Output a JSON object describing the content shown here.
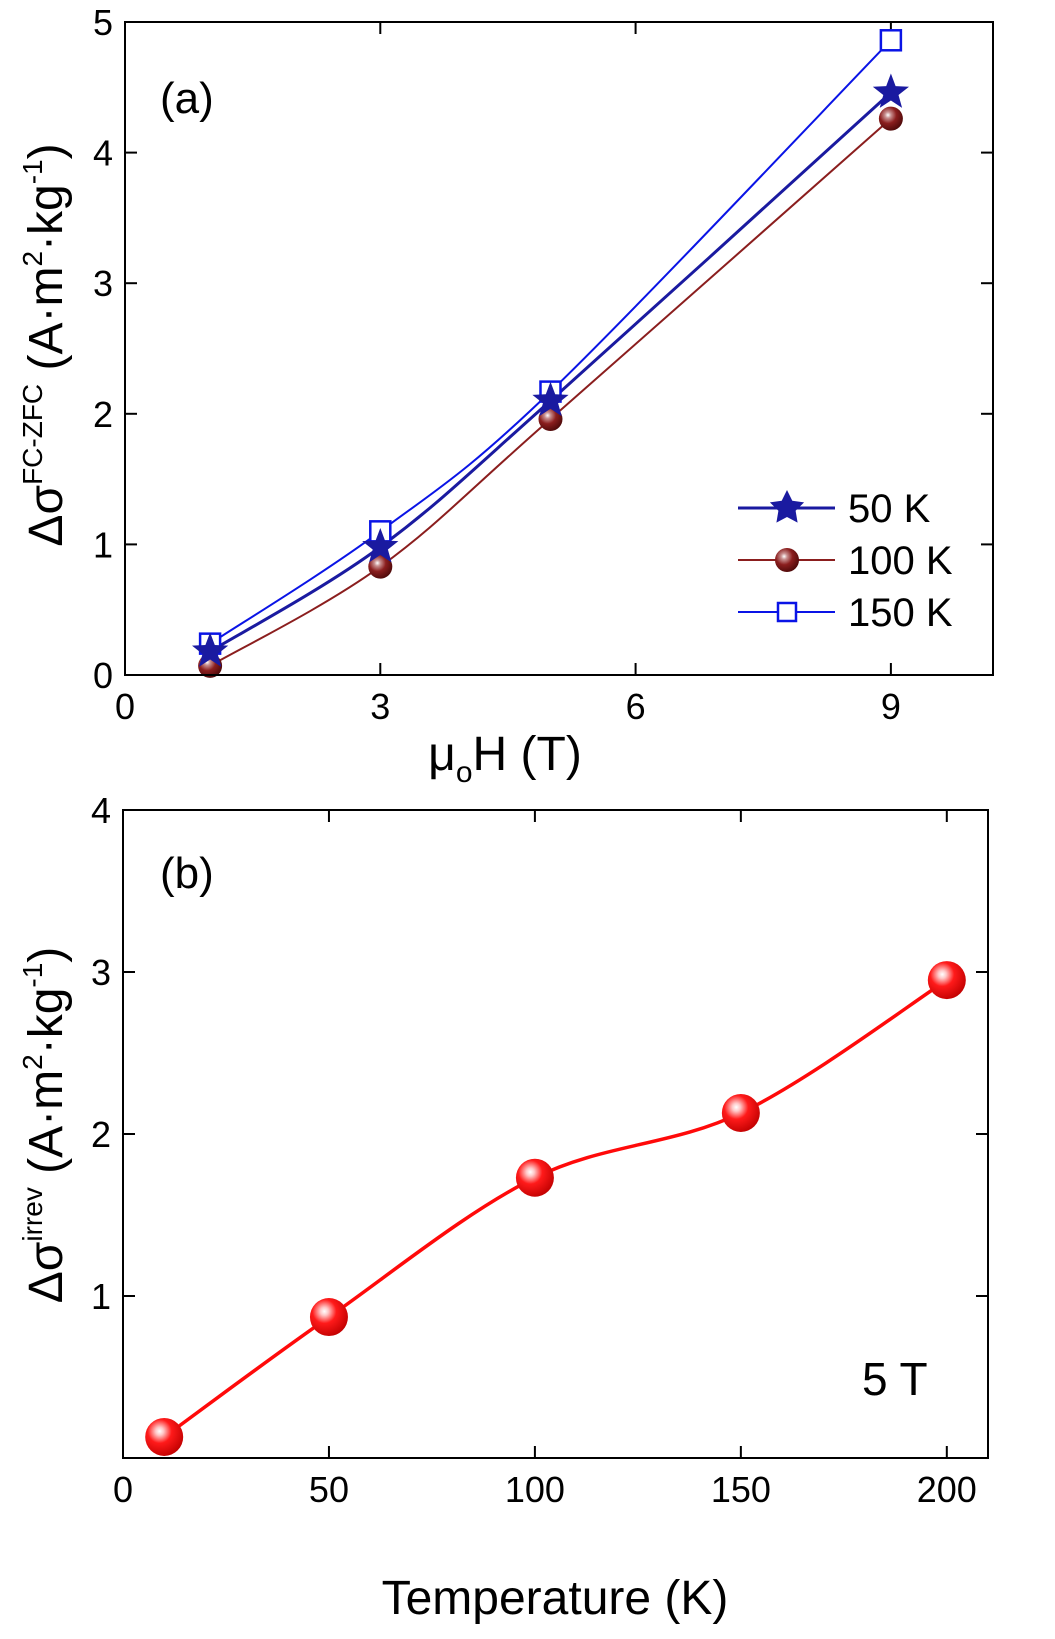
{
  "colors": {
    "series_50K": "#1a1aa0",
    "series_100K": "#8b1e1e",
    "series_150K": "#0a14e6",
    "series_b": "#ff0a0a"
  },
  "chart_data": [
    {
      "panel_label": "(a)",
      "type": "line",
      "xlabel_main": "μ",
      "xlabel_sub": "o",
      "xlabel_tail": "H (T)",
      "ylabel_prefix": "Δσ",
      "ylabel_sup": "FC-ZFC",
      "ylabel_units_a": "(A·m",
      "ylabel_units_sup2": "2",
      "ylabel_units_b": "·kg",
      "ylabel_units_supm1": "-1",
      "ylabel_units_c": ")",
      "xlim": [
        0,
        10.2
      ],
      "ylim": [
        0,
        5
      ],
      "xticks": [
        0,
        3,
        6,
        9
      ],
      "yticks": [
        0,
        1,
        2,
        3,
        4,
        5
      ],
      "legend_position": "lower-right",
      "series": [
        {
          "name": "50 K",
          "marker": "star",
          "color": "#1a1aa0",
          "x": [
            1,
            3,
            5,
            9
          ],
          "y": [
            0.18,
            0.98,
            2.1,
            4.46
          ]
        },
        {
          "name": "100 K",
          "marker": "sphere",
          "color": "#8b1e1e",
          "x": [
            1,
            3,
            5,
            9
          ],
          "y": [
            0.07,
            0.83,
            1.96,
            4.26
          ]
        },
        {
          "name": "150 K",
          "marker": "open-square",
          "color": "#0a14e6",
          "x": [
            1,
            3,
            5,
            9
          ],
          "y": [
            0.24,
            1.1,
            2.17,
            4.86
          ]
        }
      ]
    },
    {
      "panel_label": "(b)",
      "type": "line",
      "xlabel": "Temperature (K)",
      "ylabel_prefix": "Δσ",
      "ylabel_sup": "irrev",
      "ylabel_units_a": "(A·m",
      "ylabel_units_sup2": "2",
      "ylabel_units_b": "·kg",
      "ylabel_units_supm1": "-1",
      "ylabel_units_c": ")",
      "annotation": "5 T",
      "xlim": [
        0,
        210
      ],
      "ylim": [
        0,
        4
      ],
      "xticks": [
        0,
        50,
        100,
        150,
        200
      ],
      "yticks": [
        1,
        2,
        3,
        4
      ],
      "series": [
        {
          "name": "5 T",
          "marker": "sphere",
          "color": "#ff0a0a",
          "x": [
            10,
            50,
            100,
            150,
            200
          ],
          "y": [
            0.13,
            0.87,
            1.73,
            2.13,
            2.95
          ]
        }
      ]
    }
  ]
}
